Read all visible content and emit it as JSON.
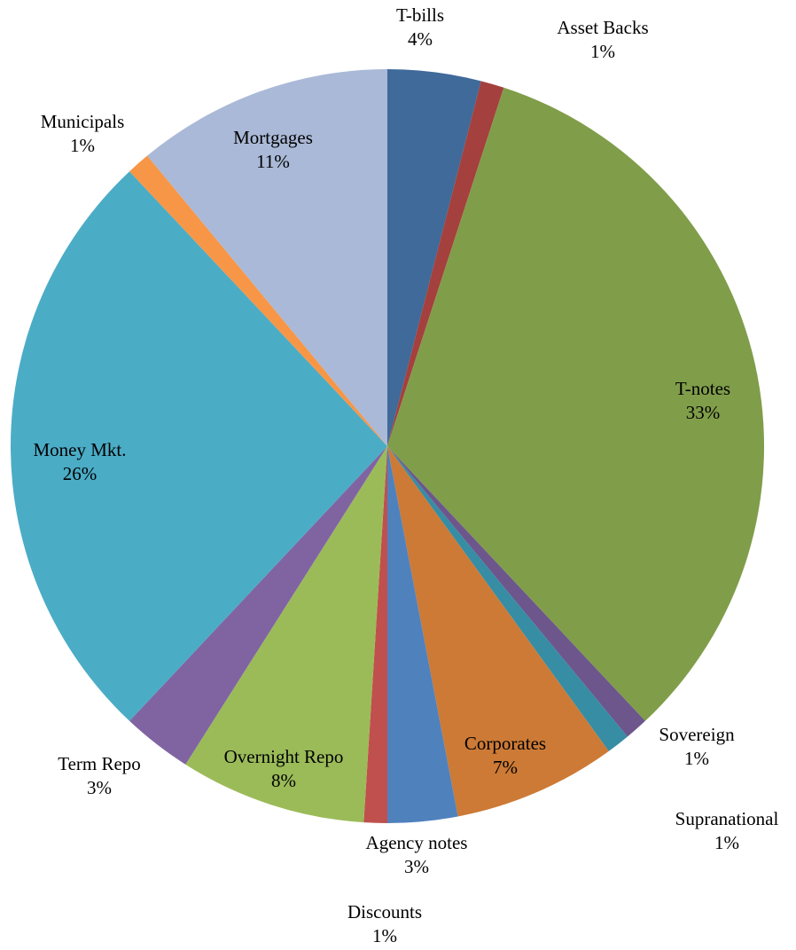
{
  "chart_data": {
    "type": "pie",
    "categories": [
      "T-bills",
      "Asset Backs",
      "T-notes",
      "Sovereign",
      "Supranational",
      "Corporates",
      "Agency notes",
      "Discounts",
      "Overnight Repo",
      "Term Repo",
      "Money Mkt.",
      "Municipals",
      "Mortgages"
    ],
    "values": [
      4,
      1,
      33,
      1,
      1,
      7,
      3,
      1,
      8,
      3,
      26,
      1,
      11
    ],
    "value_labels": [
      "4%",
      "1%",
      "33%",
      "1%",
      "1%",
      "7%",
      "3%",
      "1%",
      "8%",
      "3%",
      "26%",
      "1%",
      "11%"
    ],
    "colors": [
      "#3f6a9a",
      "#a4403d",
      "#809d4a",
      "#6c568c",
      "#378da3",
      "#cc7a36",
      "#4f81bd",
      "#c0504d",
      "#9bbb59",
      "#8064a2",
      "#4bacc6",
      "#f79646",
      "#aab9d7"
    ]
  }
}
